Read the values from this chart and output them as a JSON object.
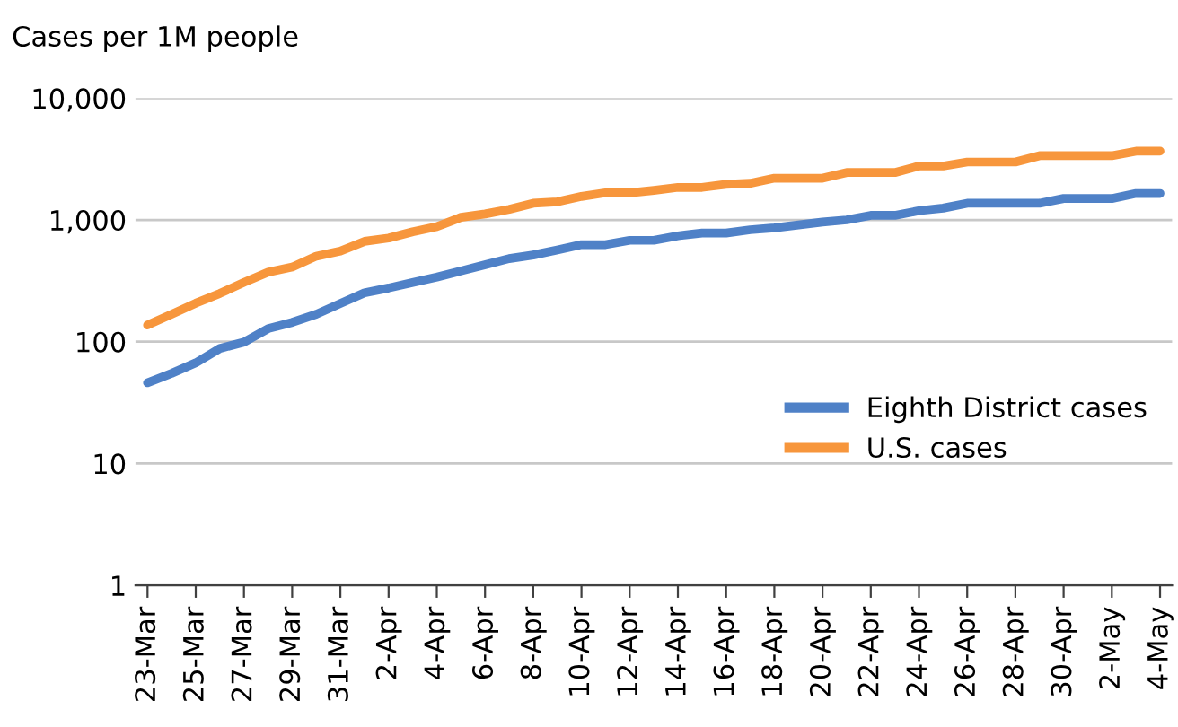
{
  "chart_data": {
    "type": "line",
    "ylabel": "Cases per 1M people",
    "categories": [
      "23-Mar",
      null,
      "25-Mar",
      null,
      "27-Mar",
      null,
      "29-Mar",
      null,
      "31-Mar",
      null,
      "2-Apr",
      null,
      "4-Apr",
      null,
      "6-Apr",
      null,
      "8-Apr",
      null,
      "10-Apr",
      null,
      "12-Apr",
      null,
      "14-Apr",
      null,
      "16-Apr",
      null,
      "18-Apr",
      null,
      "20-Apr",
      null,
      "22-Apr",
      null,
      "24-Apr",
      null,
      "26-Apr",
      null,
      "28-Apr",
      null,
      "30-Apr",
      null,
      "2-May",
      null,
      "4-May"
    ],
    "series": [
      {
        "name": "Eighth District cases",
        "color": "#4f81c7",
        "values": [
          46,
          55,
          67,
          88,
          99,
          128,
          144,
          168,
          206,
          252,
          276,
          306,
          339,
          381,
          428,
          481,
          515,
          566,
          627,
          627,
          680,
          680,
          740,
          780,
          780,
          830,
          860,
          910,
          960,
          1000,
          1090,
          1090,
          1190,
          1250,
          1370,
          1370,
          1370,
          1370,
          1500,
          1500,
          1500,
          1650,
          1650
        ]
      },
      {
        "name": "U.S. cases",
        "color": "#f7963c",
        "values": [
          137,
          168,
          207,
          249,
          307,
          372,
          410,
          504,
          555,
          667,
          710,
          800,
          880,
          1050,
          1120,
          1220,
          1370,
          1410,
          1560,
          1670,
          1670,
          1750,
          1850,
          1850,
          1960,
          2000,
          2200,
          2200,
          2200,
          2450,
          2450,
          2450,
          2770,
          2770,
          2990,
          2990,
          2990,
          3370,
          3370,
          3370,
          3370,
          3670,
          3670
        ]
      }
    ],
    "log": true,
    "ylim": [
      1,
      10000
    ],
    "yticks": [
      1,
      10,
      100,
      {
        "value": 1000,
        "label": "1,000"
      },
      {
        "value": 10000,
        "label": "10,000"
      }
    ],
    "grid": "y",
    "legend": "bottom right",
    "marker": "none",
    "line_style": "solid"
  }
}
